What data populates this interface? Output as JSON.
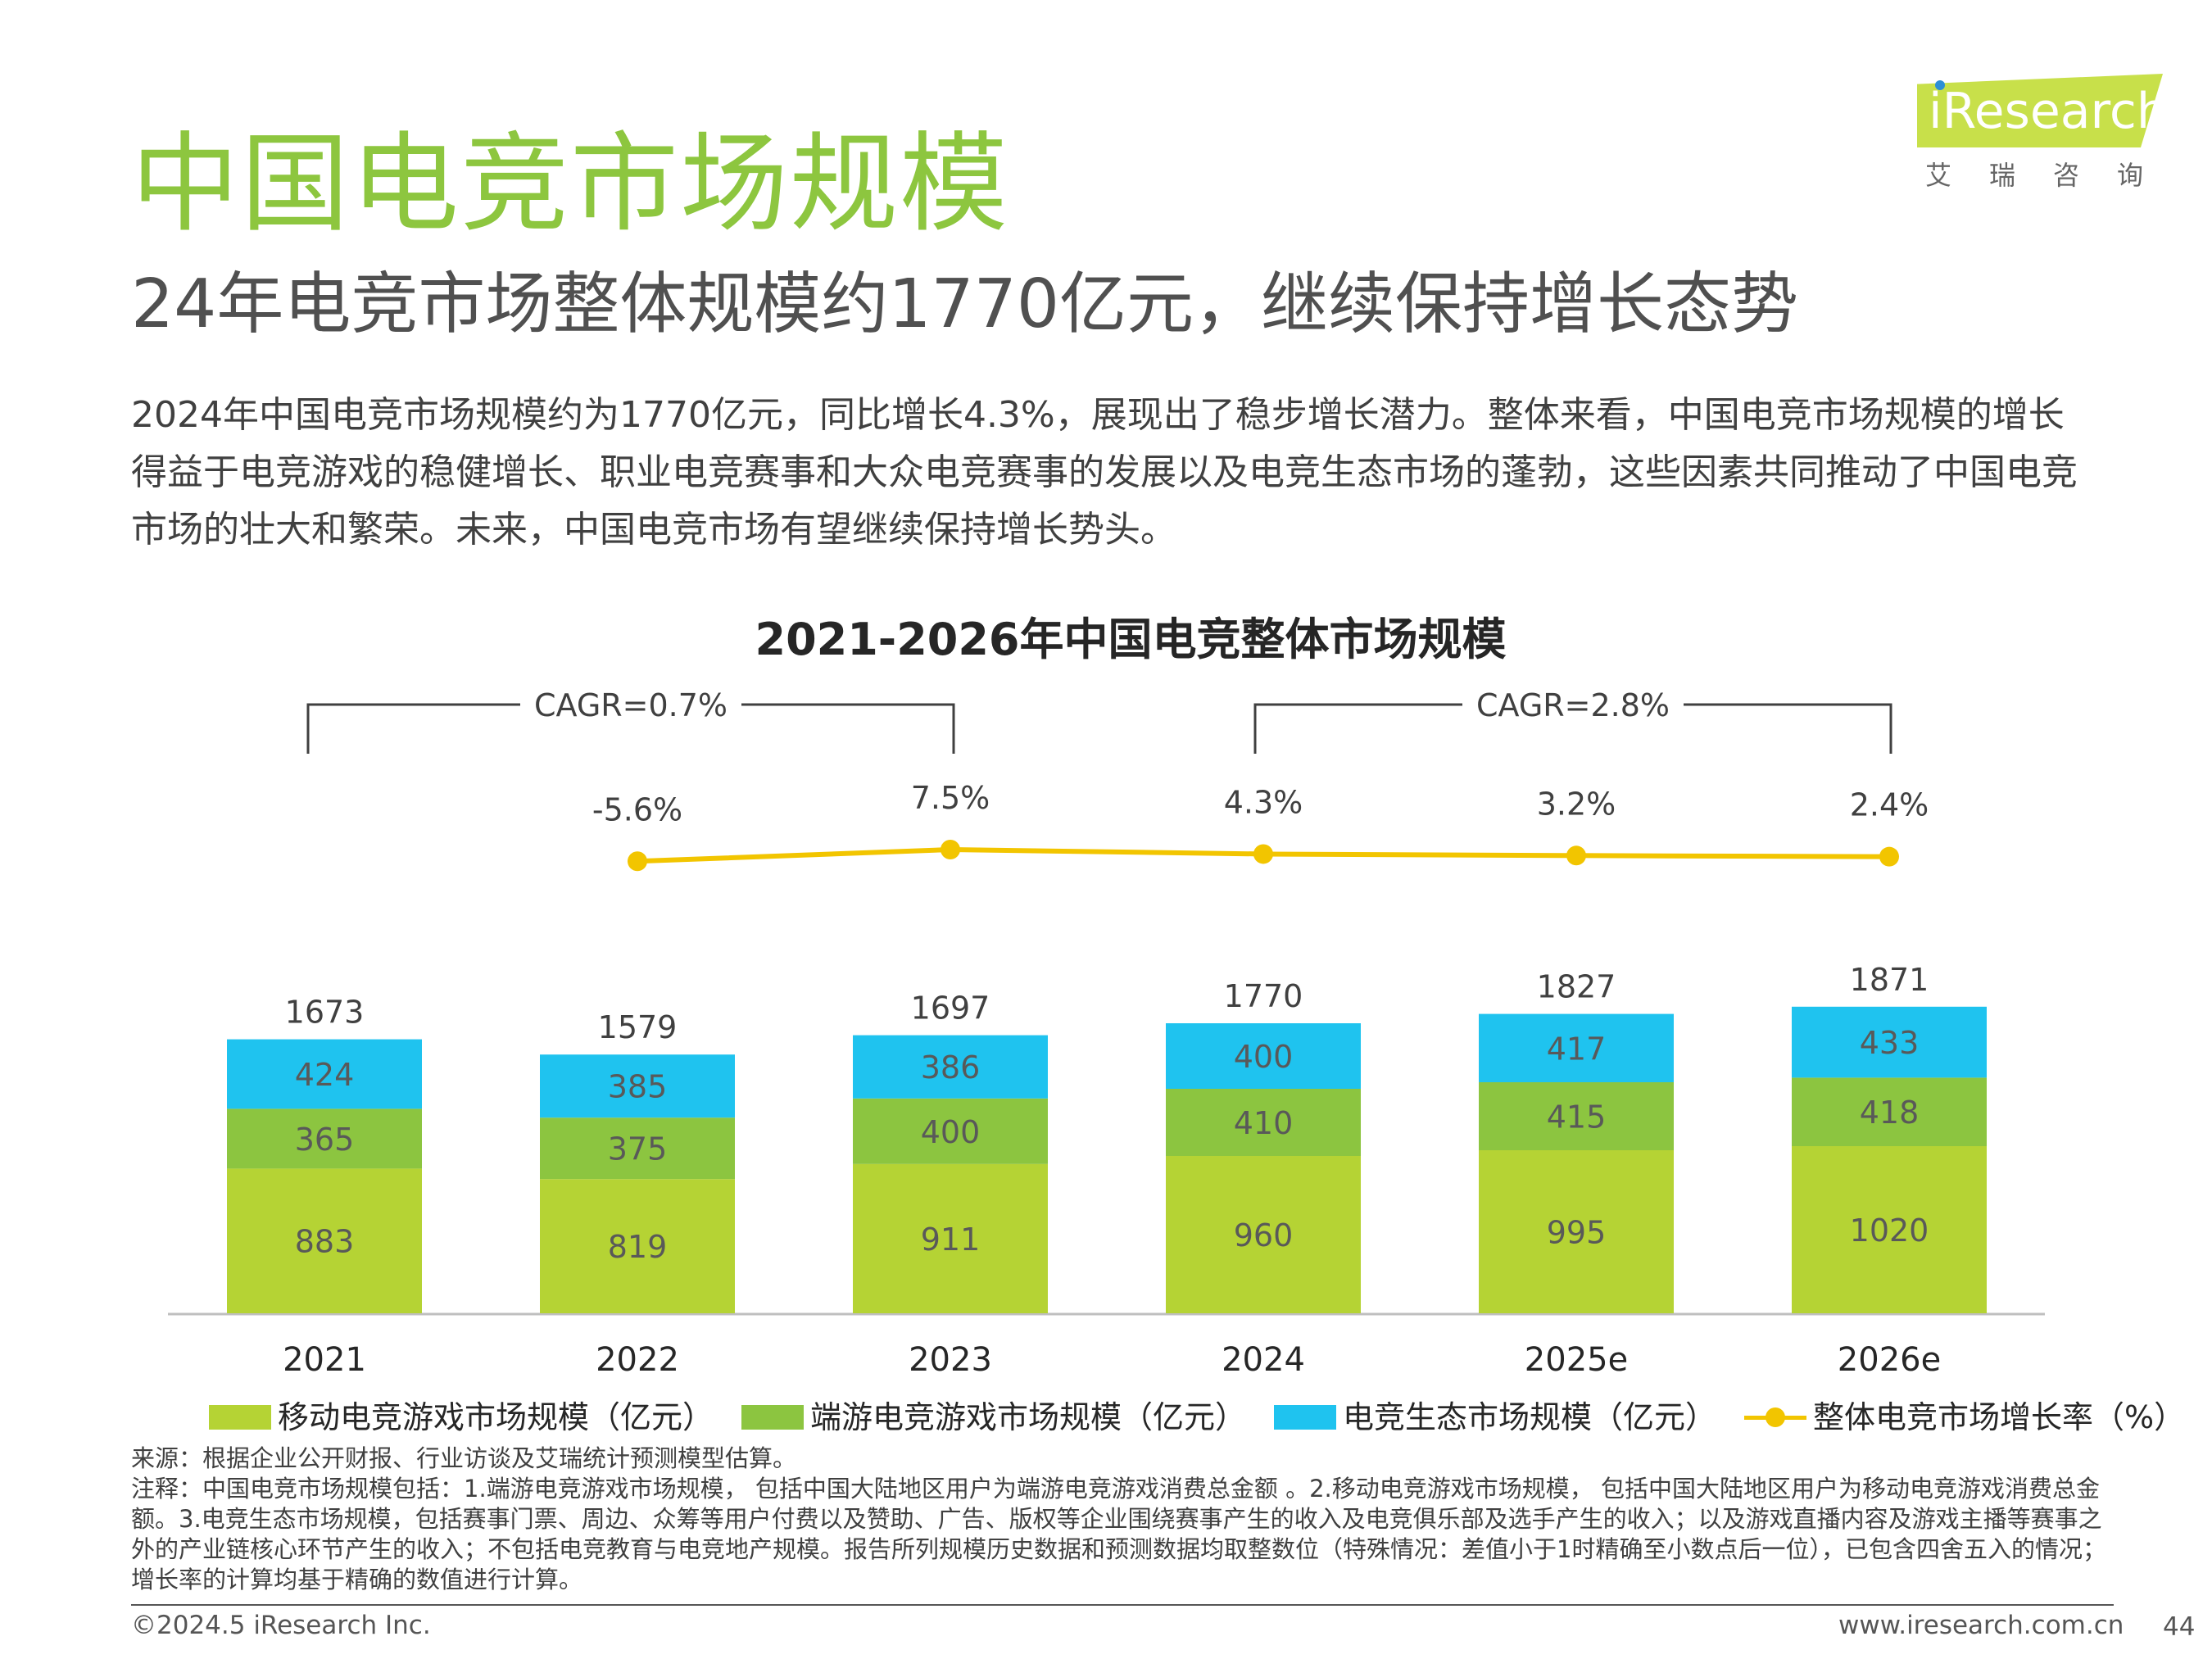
{
  "page": {
    "title": "中国电竞市场规模",
    "subtitle": "24年电竞市场整体规模约1770亿元，继续保持增长态势",
    "body": "2024年中国电竞市场规模约为1770亿元，同比增长4.3%，展现出了稳步增长潜力。整体来看，中国电竞市场规模的增长得益于电竞游戏的稳健增长、职业电竞赛事和大众电竞赛事的发展以及电竞生态市场的蓬勃，这些因素共同推动了中国电竞市场的壮大和繁荣。未来，中国电竞市场有望继续保持增长势头。",
    "source": "来源：根据企业公开财报、行业访谈及艾瑞统计预测模型估算。",
    "note": "注释：中国电竞市场规模包括：1.端游电竞游戏市场规模， 包括中国大陆地区用户为端游电竞游戏消费总金额 。2.移动电竞游戏市场规模， 包括中国大陆地区用户为移动电竞游戏消费总金额。3.电竞生态市场规模，包括赛事门票、周边、众筹等用户付费以及赞助、广告、版权等企业围绕赛事产生的收入及电竞俱乐部及选手产生的收入；以及游戏直播内容及游戏主播等赛事之外的产业链核心环节产生的收入；不包括电竞教育与电竞地产规模。报告所列规模历史数据和预测数据均取整数位（特殊情况：差值小于1时精确至小数点后一位），已包含四舍五入的情况；增长率的计算均基于精确的数值进行计算。",
    "copyright": "©2024.5 iResearch Inc.",
    "website": "www.iresearch.com.cn",
    "page_number": "44"
  },
  "logo": {
    "word": "iResearch",
    "cn": "艾瑞咨询"
  },
  "colors": {
    "title_green": "#8dc63f",
    "mobile": "#b5d334",
    "pc": "#8cc540",
    "ecosystem": "#1fc3ef",
    "growth_line": "#f2c500"
  },
  "chart_data": {
    "type": "bar",
    "stacked": true,
    "title": "2021-2026年中国电竞整体市场规模",
    "categories": [
      "2021",
      "2022",
      "2023",
      "2024",
      "2025e",
      "2026e"
    ],
    "series": [
      {
        "name": "移动电竞游戏市场规模（亿元）",
        "values": [
          883,
          819,
          911,
          960,
          995,
          1020
        ],
        "color": "#b5d334"
      },
      {
        "name": "端游电竞游戏市场规模（亿元）",
        "values": [
          365,
          375,
          400,
          410,
          415,
          418
        ],
        "color": "#8cc540"
      },
      {
        "name": "电竞生态市场规模（亿元）",
        "values": [
          424,
          385,
          386,
          400,
          417,
          433
        ],
        "color": "#1fc3ef"
      }
    ],
    "totals": [
      1673,
      1579,
      1697,
      1770,
      1827,
      1871
    ],
    "line_series": {
      "name": "整体电竞市场增长率（%）",
      "labels": [
        "",
        "-5.6%",
        "7.5%",
        "4.3%",
        "3.2%",
        "2.4%"
      ],
      "values": [
        null,
        -5.6,
        7.5,
        4.3,
        3.2,
        2.4
      ]
    },
    "cagr": [
      {
        "label": "CAGR=0.7%",
        "from": "2021",
        "to": "2023"
      },
      {
        "label": "CAGR=2.8%",
        "from": "2024",
        "to": "2026e"
      }
    ],
    "grid": false,
    "legend_position": "bottom"
  }
}
